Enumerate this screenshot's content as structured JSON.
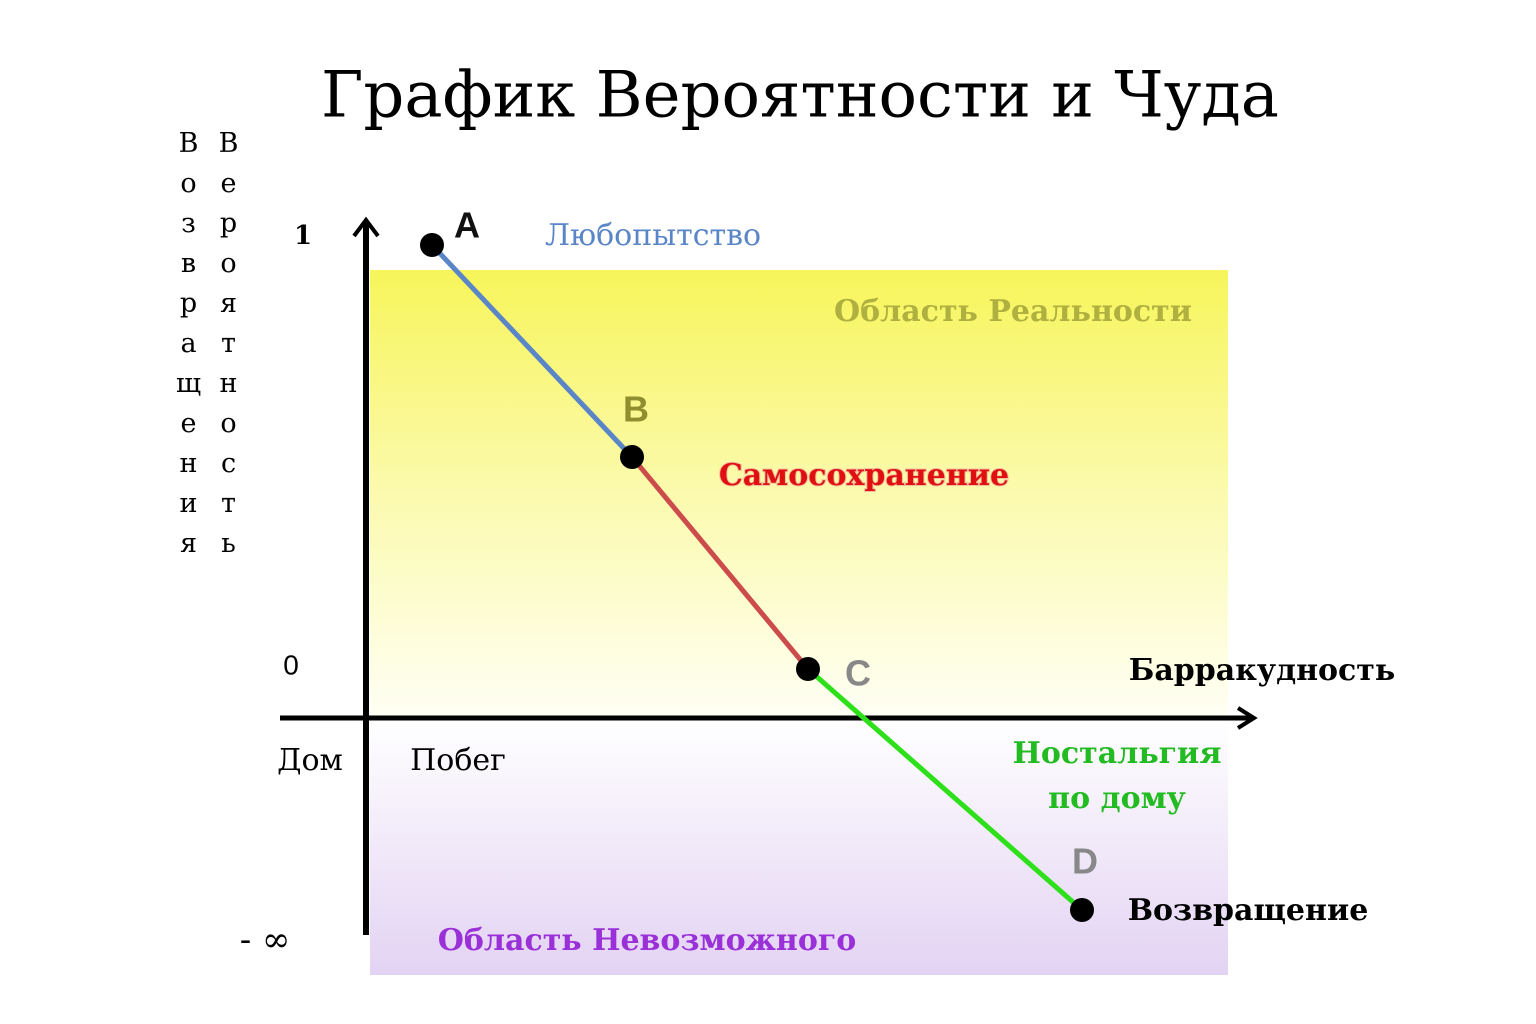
{
  "title": "График Вероятности и Чуда",
  "y_axis_label": "Вероятность Возвращения",
  "x_axis_label": "Барракудность",
  "y_labels": {
    "top": "1",
    "zero": "0",
    "bottom": "- ∞"
  },
  "x_labels": [
    "Дом",
    "Побег"
  ],
  "points": [
    {
      "label": "A"
    },
    {
      "label": "B"
    },
    {
      "label": "C"
    },
    {
      "label": "D"
    }
  ],
  "segments": [
    {
      "label": "Любопытство"
    },
    {
      "label": "Самосохранение"
    },
    {
      "label": "Ностальгия",
      "label2": "по дому"
    }
  ],
  "regions": {
    "reality": "Область Реальности",
    "impossible": "Область Невозможного"
  },
  "end_label": "Возвращение"
}
